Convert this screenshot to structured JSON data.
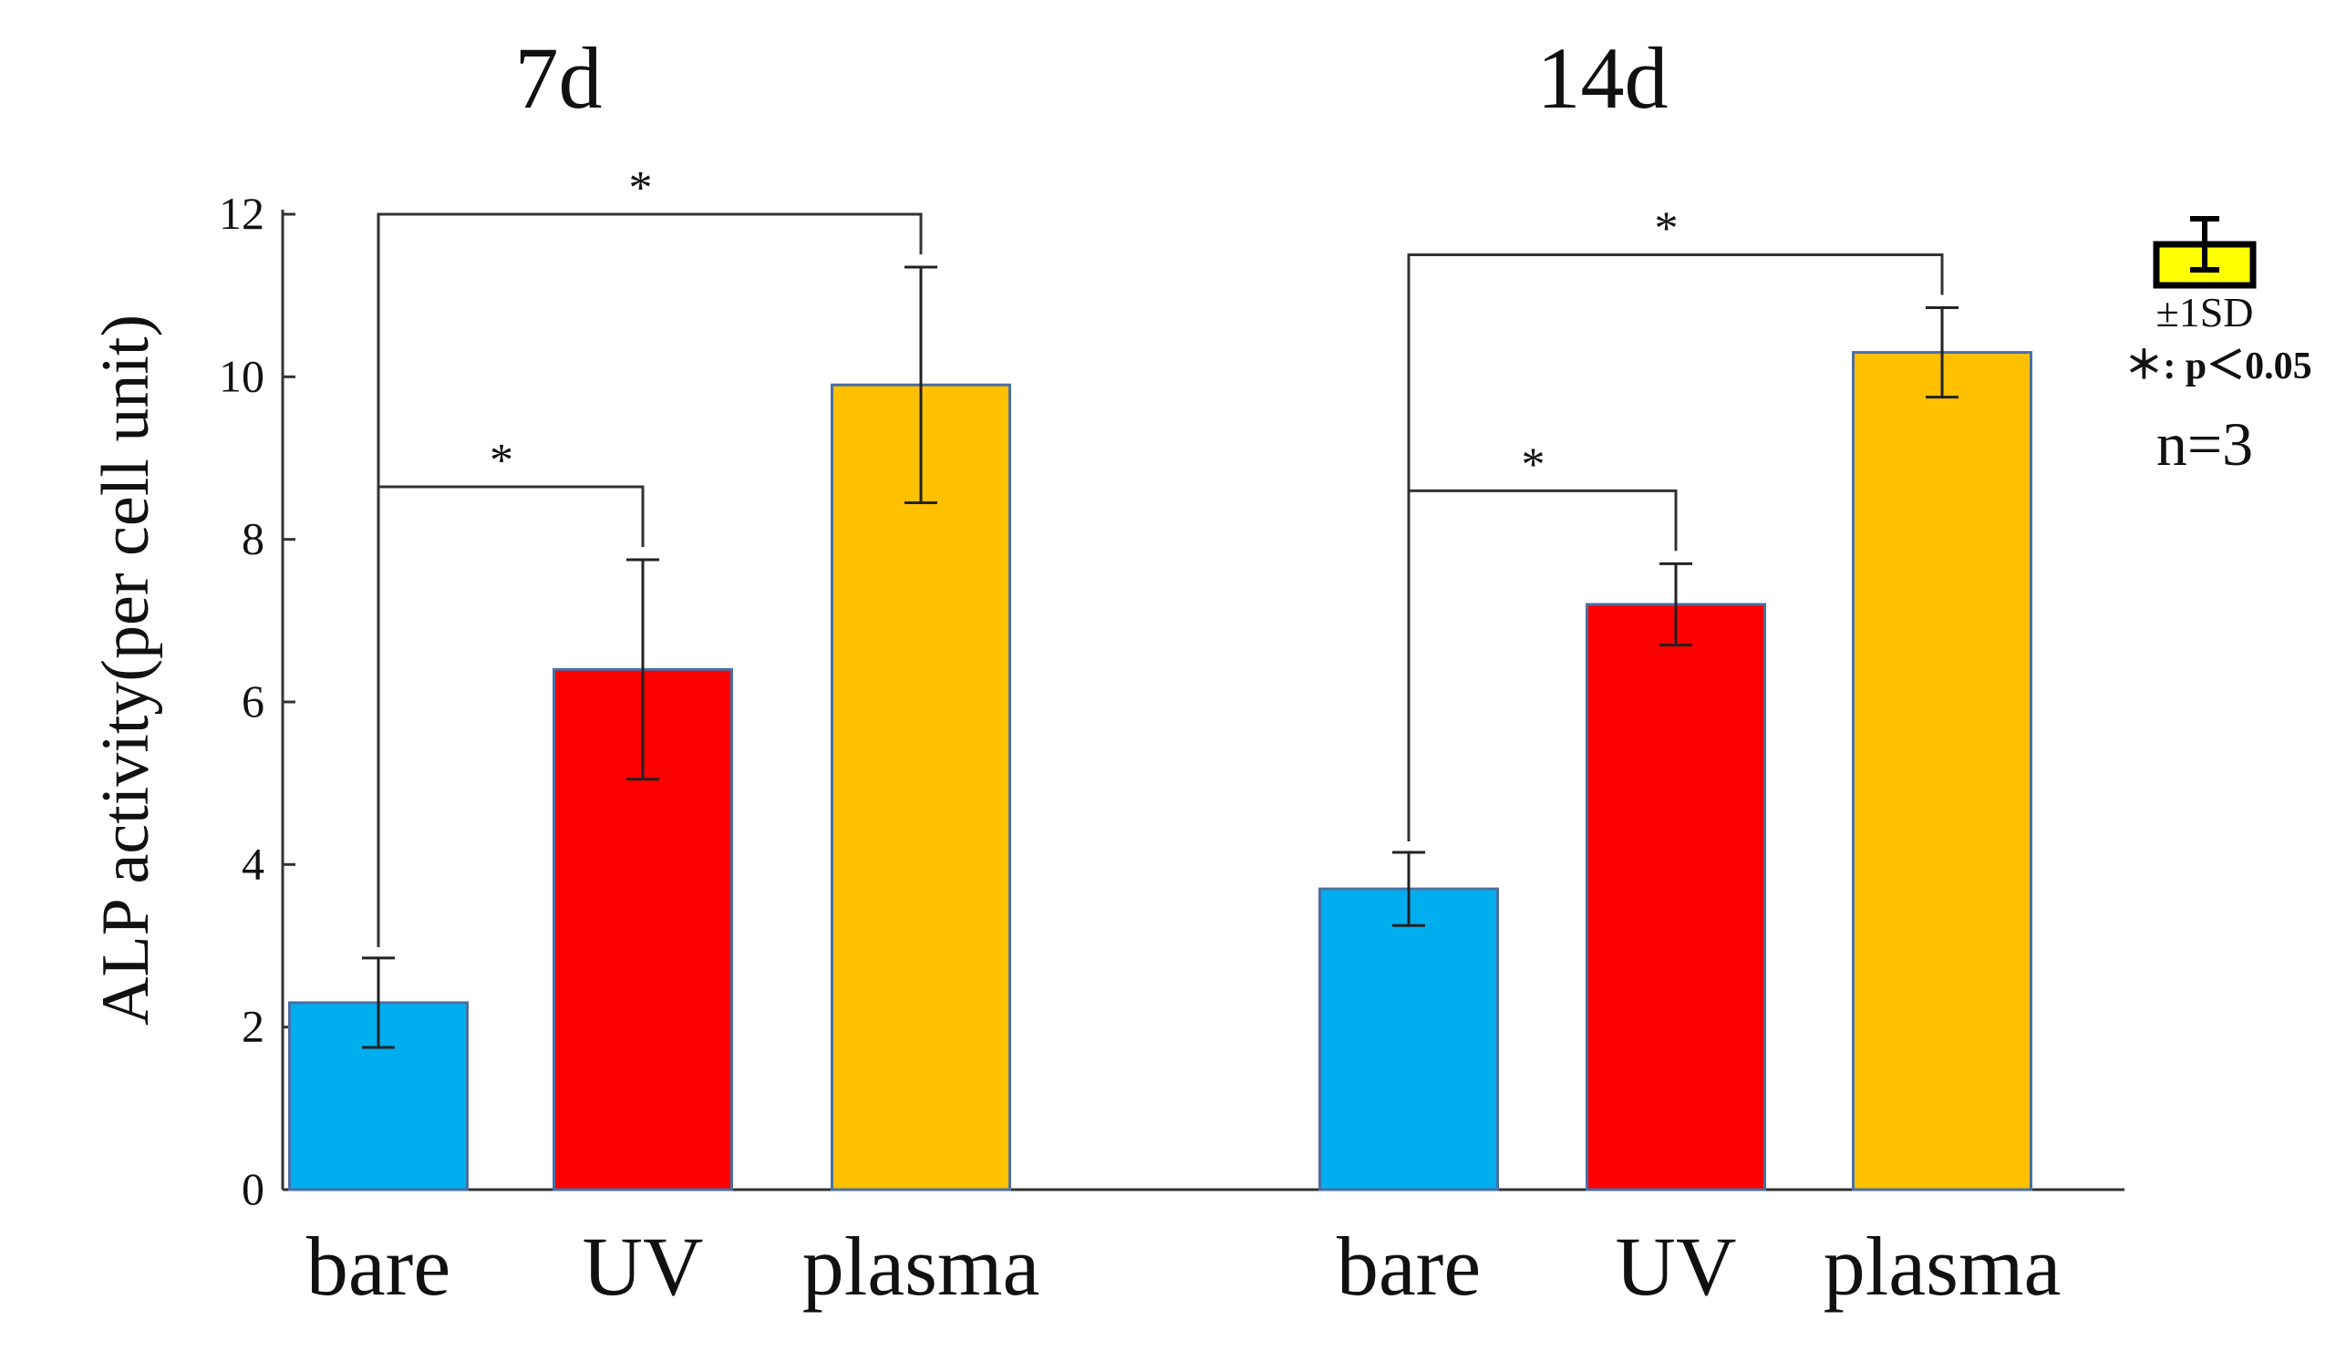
{
  "chart_data": {
    "type": "bar",
    "ylabel": "ALP activity(per cell unit)",
    "ylim": [
      0,
      12
    ],
    "yticks": [
      0,
      2,
      4,
      6,
      8,
      10,
      12
    ],
    "groups": [
      {
        "label": "7d",
        "bars": [
          {
            "category": "bare",
            "value": 2.3,
            "sd": 0.55,
            "color": "#00aeef"
          },
          {
            "category": "UV",
            "value": 6.4,
            "sd": 1.35,
            "color": "#ff0000"
          },
          {
            "category": "plasma",
            "value": 9.9,
            "sd": 1.45,
            "color": "#ffc000"
          }
        ],
        "significance": [
          {
            "from": "bare",
            "to": "UV",
            "label": "*"
          },
          {
            "from": "bare",
            "to": "plasma",
            "label": "*"
          }
        ]
      },
      {
        "label": "14d",
        "bars": [
          {
            "category": "bare",
            "value": 3.7,
            "sd": 0.45,
            "color": "#00aeef"
          },
          {
            "category": "UV",
            "value": 7.2,
            "sd": 0.5,
            "color": "#ff0000"
          },
          {
            "category": "plasma",
            "value": 10.3,
            "sd": 0.55,
            "color": "#ffc000"
          }
        ],
        "significance": [
          {
            "from": "bare",
            "to": "UV",
            "label": "*"
          },
          {
            "from": "bare",
            "to": "plasma",
            "label": "*"
          }
        ]
      }
    ],
    "legend": {
      "error_label": "±1SD",
      "significance_label": "＊: p＜0.05",
      "n_label": "n=3",
      "swatch_color": "#ffff00",
      "placement": "right"
    }
  }
}
